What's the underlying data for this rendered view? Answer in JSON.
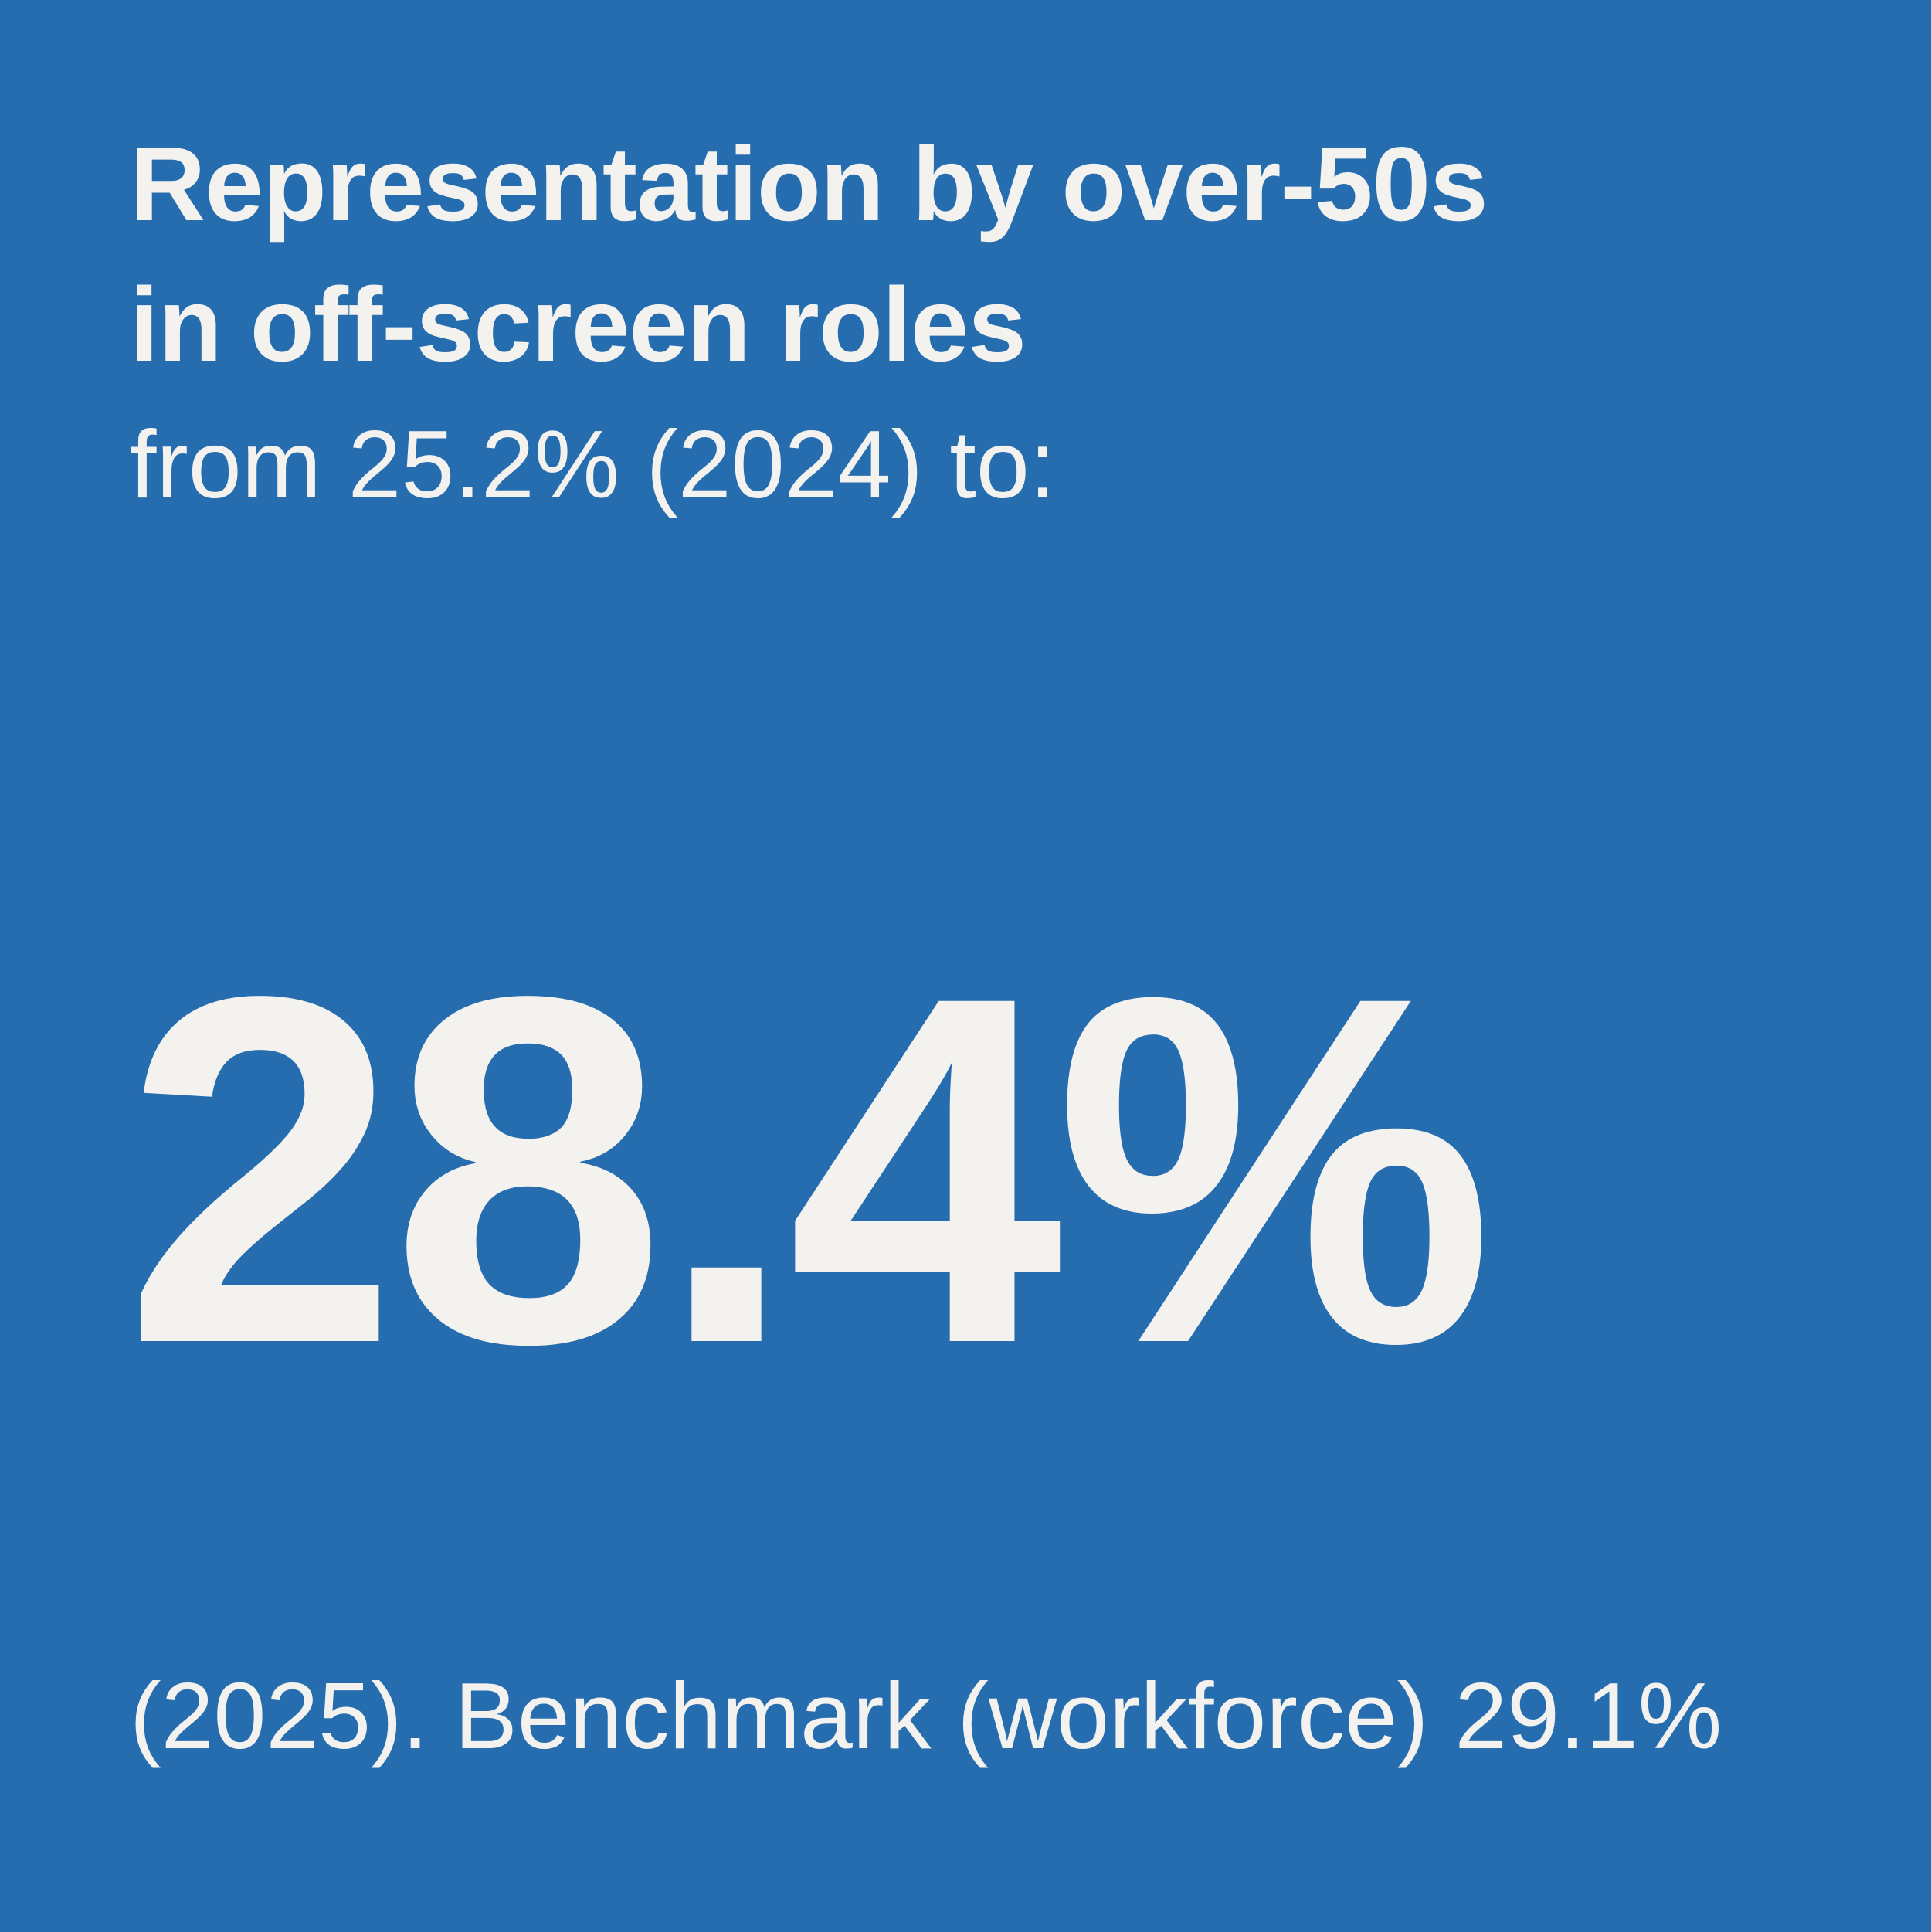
{
  "card": {
    "title_lines": [
      "Representation by over-50s",
      "in off-screen roles"
    ],
    "intro": "from 25.2% (2024) to:",
    "headline": "28.4%",
    "footnote": "(2025). Benchmark (workforce) 29.1%"
  }
}
